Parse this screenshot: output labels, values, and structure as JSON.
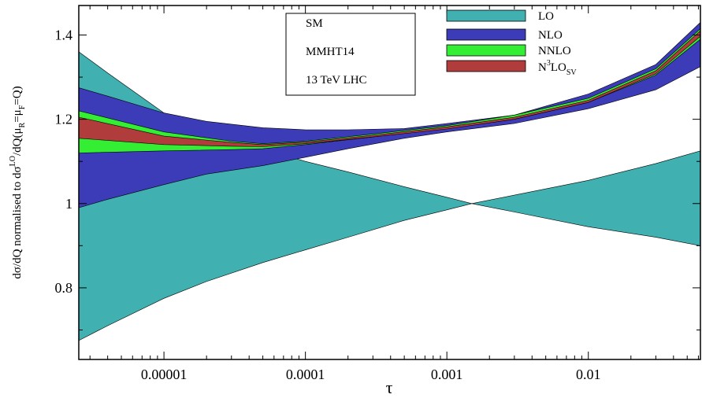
{
  "chart_data": {
    "type": "area",
    "xlabel": "τ",
    "ylabel": {
      "main": "dσ/dQ normalised to dσ",
      "sup_lo": "LO",
      "mid": "/dQ(μ",
      "sub_r": "R",
      "eq": "=μ",
      "sub_f": "F",
      "tail": "=Q)"
    },
    "x_scale": "log",
    "xlim": [
      2.5e-06,
      0.062
    ],
    "ylim": [
      0.63,
      1.47
    ],
    "x_ticks": [
      {
        "value": 1e-05,
        "label": "0.00001"
      },
      {
        "value": 0.0001,
        "label": "0.0001"
      },
      {
        "value": 0.001,
        "label": "0.001"
      },
      {
        "value": 0.01,
        "label": "0.01"
      }
    ],
    "y_ticks": [
      {
        "value": 0.8,
        "label": "0.8"
      },
      {
        "value": 1.0,
        "label": "1"
      },
      {
        "value": 1.2,
        "label": "1.2"
      },
      {
        "value": 1.4,
        "label": "1.4"
      }
    ],
    "info_box": [
      "SM",
      "MMHT14",
      "13 TeV LHC"
    ],
    "legend_position": "top-right",
    "series": [
      {
        "name": "LO",
        "color": "#40b0b0",
        "x": [
          2.5e-06,
          4e-06,
          1e-05,
          2e-05,
          5e-05,
          0.0001,
          0.0002,
          0.0005,
          0.001,
          0.0015,
          0.003,
          0.01,
          0.03,
          0.062
        ],
        "upper": [
          1.36,
          1.31,
          1.215,
          1.17,
          1.13,
          1.1,
          1.075,
          1.04,
          1.015,
          1.0,
          1.02,
          1.055,
          1.095,
          1.125
        ],
        "lower": [
          0.675,
          0.71,
          0.775,
          0.815,
          0.86,
          0.89,
          0.92,
          0.96,
          0.985,
          1.0,
          0.98,
          0.945,
          0.92,
          0.9
        ]
      },
      {
        "name": "NLO",
        "color": "#3c3cb8",
        "x": [
          2.5e-06,
          4e-06,
          1e-05,
          2e-05,
          5e-05,
          0.0001,
          0.0002,
          0.0005,
          0.001,
          0.003,
          0.01,
          0.03,
          0.062
        ],
        "upper": [
          1.275,
          1.255,
          1.215,
          1.195,
          1.18,
          1.175,
          1.175,
          1.178,
          1.19,
          1.21,
          1.26,
          1.33,
          1.43
        ],
        "lower": [
          0.99,
          1.01,
          1.045,
          1.07,
          1.09,
          1.11,
          1.13,
          1.155,
          1.17,
          1.19,
          1.225,
          1.27,
          1.325
        ]
      },
      {
        "name": "NNLO",
        "color": "#33ee33",
        "x": [
          2.5e-06,
          1e-05,
          3e-05,
          5e-05,
          0.0001,
          0.0003,
          0.001,
          0.003,
          0.01,
          0.03,
          0.062
        ],
        "upper": [
          1.22,
          1.17,
          1.148,
          1.142,
          1.148,
          1.165,
          1.185,
          1.21,
          1.25,
          1.32,
          1.415
        ],
        "lower": [
          1.12,
          1.125,
          1.128,
          1.13,
          1.14,
          1.158,
          1.178,
          1.2,
          1.24,
          1.305,
          1.39
        ]
      },
      {
        "name": "N3LO_SV",
        "color": "#b03c3c",
        "x": [
          2.5e-06,
          1e-05,
          3e-05,
          5e-05,
          0.0001,
          0.0003,
          0.001,
          0.003,
          0.01,
          0.03,
          0.062
        ],
        "upper": [
          1.205,
          1.16,
          1.145,
          1.14,
          1.146,
          1.162,
          1.182,
          1.205,
          1.245,
          1.315,
          1.41
        ],
        "lower": [
          1.155,
          1.14,
          1.136,
          1.135,
          1.142,
          1.158,
          1.177,
          1.2,
          1.24,
          1.308,
          1.397
        ]
      }
    ],
    "legend": [
      {
        "label": "LO",
        "color": "#40b0b0"
      },
      {
        "label": "NLO",
        "color": "#3c3cb8"
      },
      {
        "label": "NNLO",
        "color": "#33ee33"
      },
      {
        "label": "N",
        "sup": "3",
        "rest": "LO",
        "sub": "SV",
        "color": "#b03c3c"
      }
    ]
  }
}
